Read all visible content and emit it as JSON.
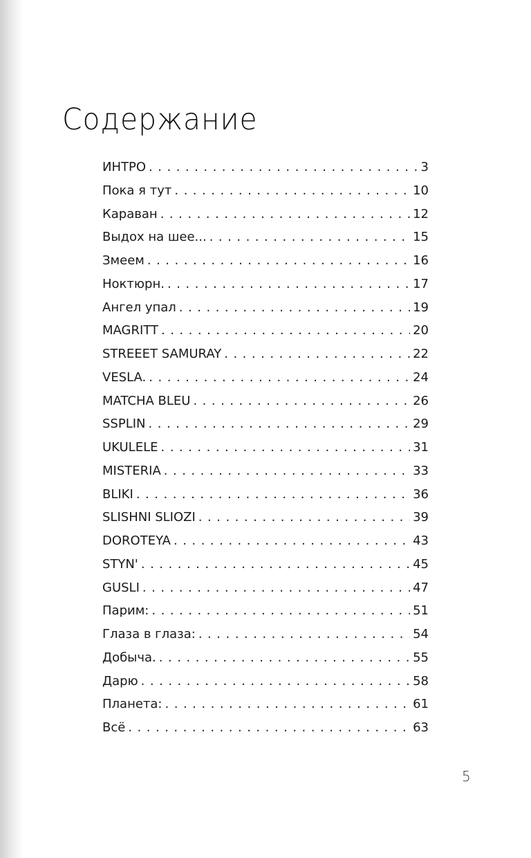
{
  "title": "Содержание",
  "entries": [
    {
      "label": "ИНТРО",
      "page": "3"
    },
    {
      "label": "Пока я тут",
      "page": "10"
    },
    {
      "label": "Караван",
      "page": "12"
    },
    {
      "label": "Выдох на шее...",
      "page": "15"
    },
    {
      "label": "Змеем",
      "page": "16"
    },
    {
      "label": "Ноктюрн.",
      "page": "17"
    },
    {
      "label": "Ангел упал",
      "page": "19"
    },
    {
      "label": "MAGRITT",
      "page": "20"
    },
    {
      "label": "STREEET SAMURAY",
      "page": "22"
    },
    {
      "label": "VESLA.",
      "page": "24"
    },
    {
      "label": "MATCHA BLEU",
      "page": "26"
    },
    {
      "label": "SSPLIN",
      "page": "29"
    },
    {
      "label": "UKULELE",
      "page": "31"
    },
    {
      "label": "MISTERIA",
      "page": "33"
    },
    {
      "label": "BLIKI",
      "page": "36"
    },
    {
      "label": "SLISHNI SLIOZI",
      "page": "39"
    },
    {
      "label": "DOROTEYA",
      "page": "43"
    },
    {
      "label": "STYN'",
      "page": "45"
    },
    {
      "label": "GUSLI",
      "page": "47"
    },
    {
      "label": "Парим:",
      "page": "51"
    },
    {
      "label": "Глаза в глаза:",
      "page": "54"
    },
    {
      "label": "Добыча.",
      "page": "55"
    },
    {
      "label": "Дарю",
      "page": "58"
    },
    {
      "label": "Планета:",
      "page": "61"
    },
    {
      "label": "Всё",
      "page": "63"
    }
  ],
  "page_number": "5"
}
